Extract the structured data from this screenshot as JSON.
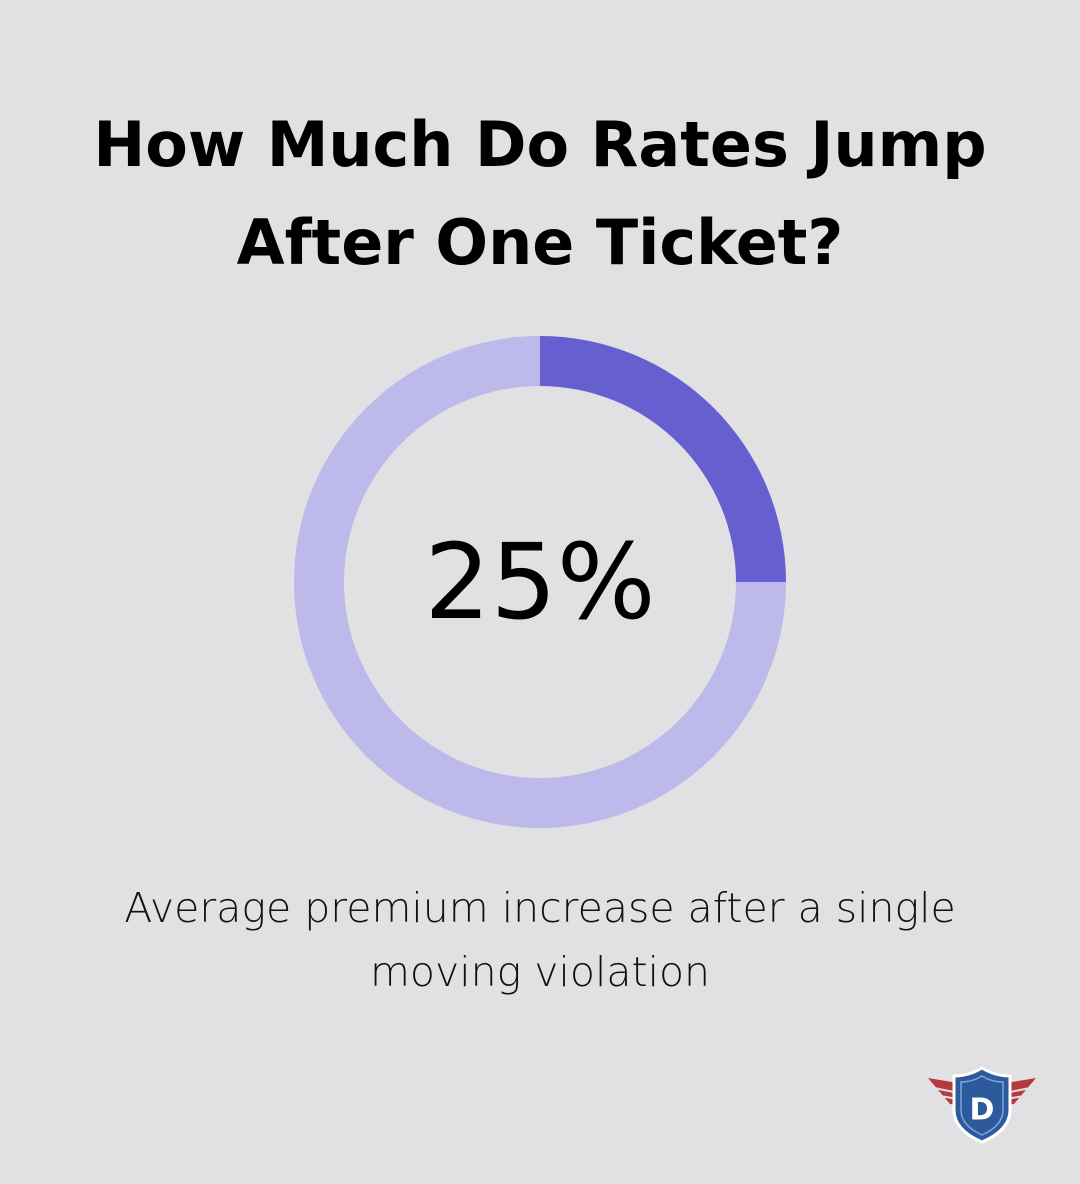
{
  "title": "How Much Do Rates Jump After One Ticket?",
  "caption": "Average premium increase after a single moving violation",
  "colors": {
    "background": "#e1e1e3",
    "value_arc": "#665fcf",
    "track_arc": "#bdb9ea",
    "logo_shield": "#2c5a9c",
    "logo_wings": "#b53a3e"
  },
  "chart_data": {
    "type": "pie",
    "style": "donut",
    "value_percent": 25,
    "center_label": "25%",
    "slices": [
      {
        "value": 25,
        "color": "#665fcf"
      },
      {
        "value": 75,
        "color": "#bdb9ea"
      }
    ]
  },
  "logo": {
    "icon": "shield-with-wings-icon",
    "letter": "D"
  }
}
